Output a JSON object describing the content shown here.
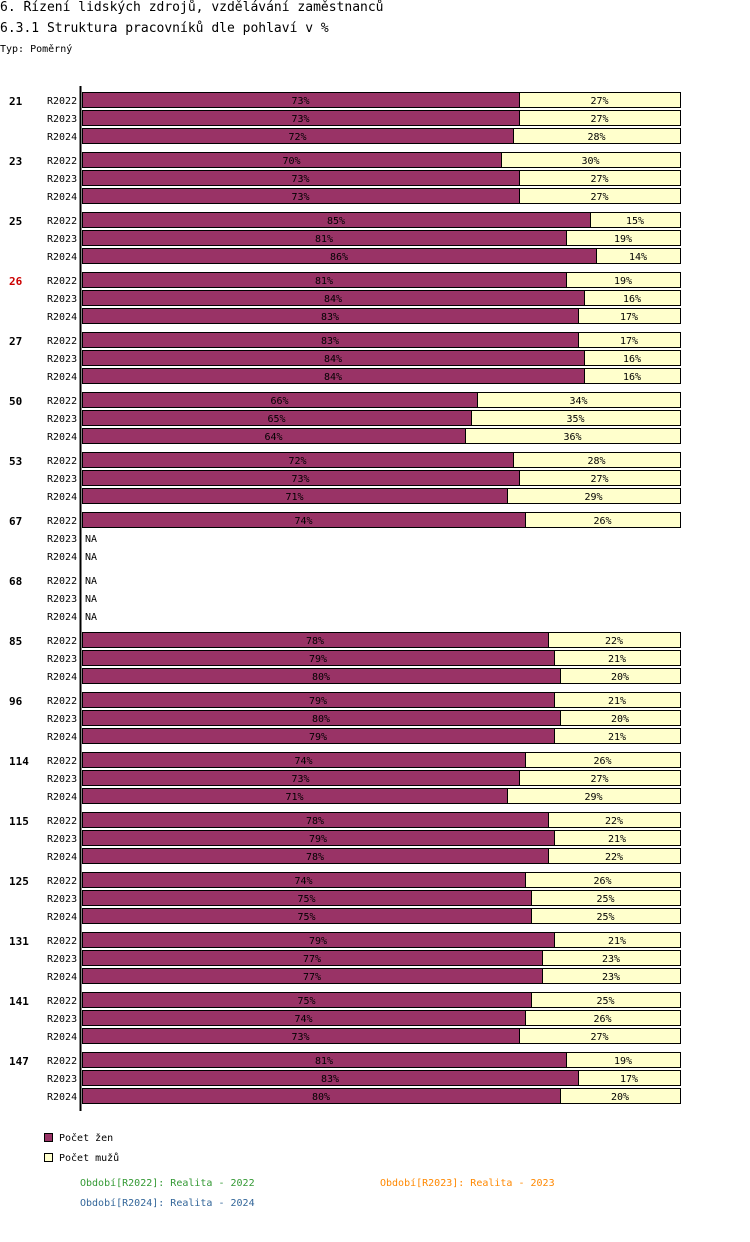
{
  "header": {
    "title": "6. Řízení lidských zdrojů, vzdělávání zaměstnanců",
    "subtitle": "6.3.1 Struktura pracovníků dle pohlaví v %",
    "type_label": "Typ: Poměrný"
  },
  "colors": {
    "women": "#993366",
    "men": "#ffffcc",
    "highlight_group": "#cc0000",
    "period_2022": "#339933",
    "period_2023": "#ff8800",
    "period_2024": "#336699"
  },
  "chart_data": {
    "type": "bar",
    "orientation": "horizontal",
    "stacked": true,
    "percent_scale": true,
    "xlim": [
      0,
      100
    ],
    "series_names": [
      "Počet žen",
      "Počet mužů"
    ],
    "highlighted_group": "26",
    "na_label": "NA",
    "groups": [
      {
        "group": "21",
        "rows": [
          {
            "period": "R2022",
            "women": 73,
            "men": 27
          },
          {
            "period": "R2023",
            "women": 73,
            "men": 27
          },
          {
            "period": "R2024",
            "women": 72,
            "men": 28
          }
        ]
      },
      {
        "group": "23",
        "rows": [
          {
            "period": "R2022",
            "women": 70,
            "men": 30
          },
          {
            "period": "R2023",
            "women": 73,
            "men": 27
          },
          {
            "period": "R2024",
            "women": 73,
            "men": 27
          }
        ]
      },
      {
        "group": "25",
        "rows": [
          {
            "period": "R2022",
            "women": 85,
            "men": 15
          },
          {
            "period": "R2023",
            "women": 81,
            "men": 19
          },
          {
            "period": "R2024",
            "women": 86,
            "men": 14
          }
        ]
      },
      {
        "group": "26",
        "rows": [
          {
            "period": "R2022",
            "women": 81,
            "men": 19
          },
          {
            "period": "R2023",
            "women": 84,
            "men": 16
          },
          {
            "period": "R2024",
            "women": 83,
            "men": 17
          }
        ]
      },
      {
        "group": "27",
        "rows": [
          {
            "period": "R2022",
            "women": 83,
            "men": 17
          },
          {
            "period": "R2023",
            "women": 84,
            "men": 16
          },
          {
            "period": "R2024",
            "women": 84,
            "men": 16
          }
        ]
      },
      {
        "group": "50",
        "rows": [
          {
            "period": "R2022",
            "women": 66,
            "men": 34
          },
          {
            "period": "R2023",
            "women": 65,
            "men": 35
          },
          {
            "period": "R2024",
            "women": 64,
            "men": 36
          }
        ]
      },
      {
        "group": "53",
        "rows": [
          {
            "period": "R2022",
            "women": 72,
            "men": 28
          },
          {
            "period": "R2023",
            "women": 73,
            "men": 27
          },
          {
            "period": "R2024",
            "women": 71,
            "men": 29
          }
        ]
      },
      {
        "group": "67",
        "rows": [
          {
            "period": "R2022",
            "women": 74,
            "men": 26
          },
          {
            "period": "R2023",
            "women": null,
            "men": null
          },
          {
            "period": "R2024",
            "women": null,
            "men": null
          }
        ]
      },
      {
        "group": "68",
        "rows": [
          {
            "period": "R2022",
            "women": null,
            "men": null
          },
          {
            "period": "R2023",
            "women": null,
            "men": null
          },
          {
            "period": "R2024",
            "women": null,
            "men": null
          }
        ]
      },
      {
        "group": "85",
        "rows": [
          {
            "period": "R2022",
            "women": 78,
            "men": 22
          },
          {
            "period": "R2023",
            "women": 79,
            "men": 21
          },
          {
            "period": "R2024",
            "women": 80,
            "men": 20
          }
        ]
      },
      {
        "group": "96",
        "rows": [
          {
            "period": "R2022",
            "women": 79,
            "men": 21
          },
          {
            "period": "R2023",
            "women": 80,
            "men": 20
          },
          {
            "period": "R2024",
            "women": 79,
            "men": 21
          }
        ]
      },
      {
        "group": "114",
        "rows": [
          {
            "period": "R2022",
            "women": 74,
            "men": 26
          },
          {
            "period": "R2023",
            "women": 73,
            "men": 27
          },
          {
            "period": "R2024",
            "women": 71,
            "men": 29
          }
        ]
      },
      {
        "group": "115",
        "rows": [
          {
            "period": "R2022",
            "women": 78,
            "men": 22
          },
          {
            "period": "R2023",
            "women": 79,
            "men": 21
          },
          {
            "period": "R2024",
            "women": 78,
            "men": 22
          }
        ]
      },
      {
        "group": "125",
        "rows": [
          {
            "period": "R2022",
            "women": 74,
            "men": 26
          },
          {
            "period": "R2023",
            "women": 75,
            "men": 25
          },
          {
            "period": "R2024",
            "women": 75,
            "men": 25
          }
        ]
      },
      {
        "group": "131",
        "rows": [
          {
            "period": "R2022",
            "women": 79,
            "men": 21
          },
          {
            "period": "R2023",
            "women": 77,
            "men": 23
          },
          {
            "period": "R2024",
            "women": 77,
            "men": 23
          }
        ]
      },
      {
        "group": "141",
        "rows": [
          {
            "period": "R2022",
            "women": 75,
            "men": 25
          },
          {
            "period": "R2023",
            "women": 74,
            "men": 26
          },
          {
            "period": "R2024",
            "women": 73,
            "men": 27
          }
        ]
      },
      {
        "group": "147",
        "rows": [
          {
            "period": "R2022",
            "women": 81,
            "men": 19
          },
          {
            "period": "R2023",
            "women": 83,
            "men": 17
          },
          {
            "period": "R2024",
            "women": 80,
            "men": 20
          }
        ]
      }
    ]
  },
  "legend": {
    "women_label": "Počet žen",
    "men_label": "Počet mužů"
  },
  "periods": {
    "p2022": "Období[R2022]: Realita - 2022",
    "p2023": "Období[R2023]: Realita - 2023",
    "p2024": "Období[R2024]: Realita - 2024"
  }
}
